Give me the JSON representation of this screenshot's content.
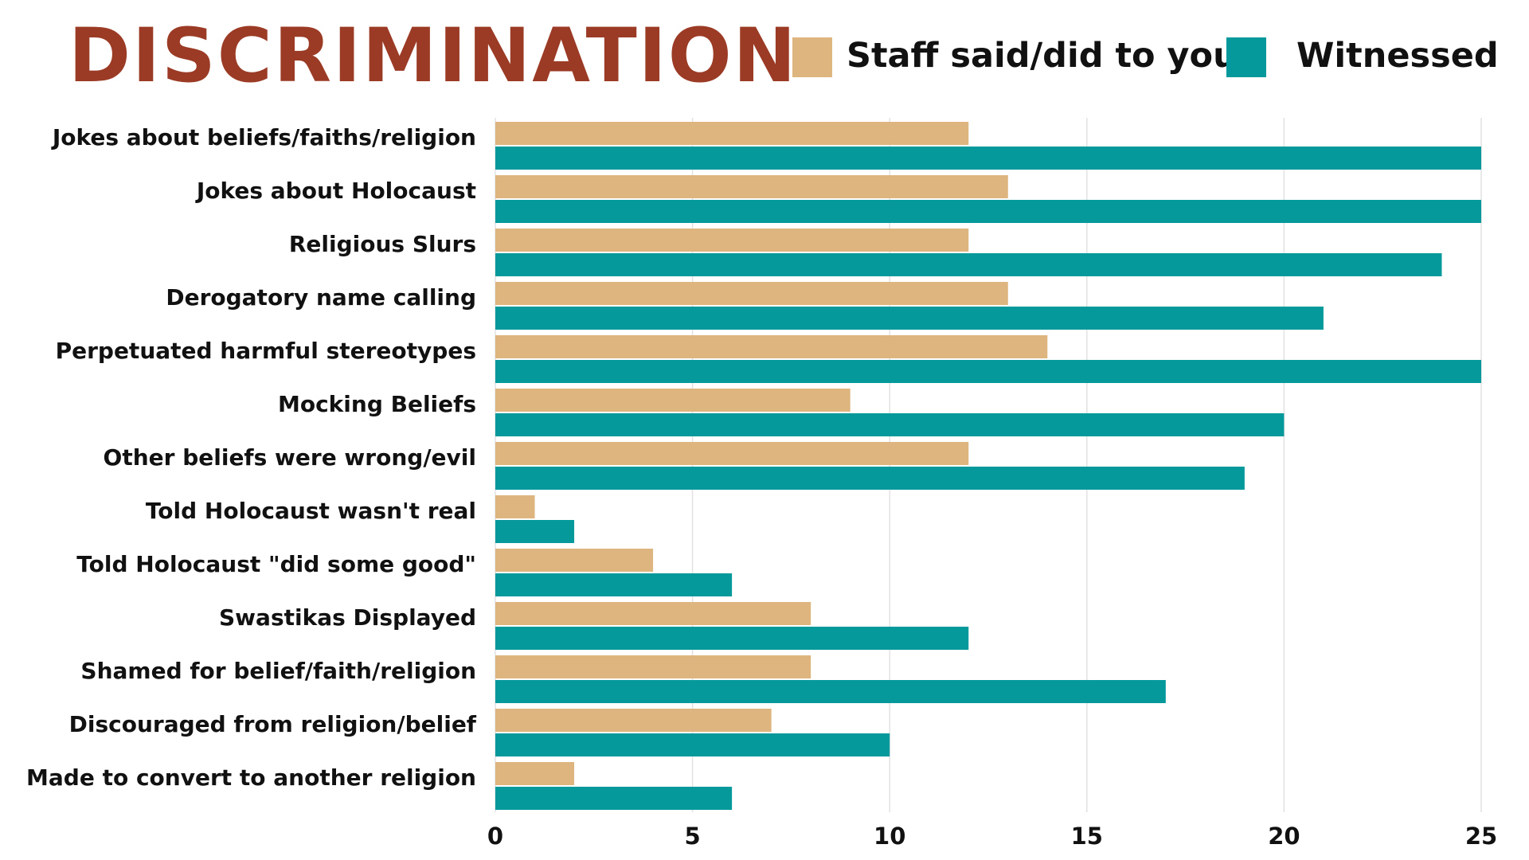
{
  "chart_data": {
    "type": "bar",
    "orientation": "horizontal",
    "title": "DISCRIMINATION",
    "categories": [
      "Jokes about beliefs/faiths/religion",
      "Jokes about Holocaust",
      "Religious Slurs",
      "Derogatory name calling",
      "Perpetuated harmful stereotypes",
      "Mocking Beliefs",
      "Other beliefs were wrong/evil",
      "Told Holocaust wasn't real",
      "Told Holocaust \"did some good\"",
      "Swastikas Displayed",
      "Shamed for belief/faith/religion",
      "Discouraged from religion/belief",
      "Made to convert to another religion"
    ],
    "series": [
      {
        "name": "Staff said/did to you",
        "color": "#deb47f",
        "values": [
          12,
          13,
          12,
          13,
          14,
          9,
          12,
          1,
          4,
          8,
          8,
          7,
          2
        ]
      },
      {
        "name": "Witnessed",
        "color": "#05999b",
        "values": [
          25,
          25,
          24,
          21,
          25,
          20,
          19,
          2,
          6,
          12,
          17,
          10,
          6
        ]
      }
    ],
    "xlim": [
      0,
      25
    ],
    "xticks": [
      0,
      5,
      10,
      15,
      20,
      25
    ],
    "grid": true,
    "legend_position": "top-right",
    "xlabel": "",
    "ylabel": ""
  }
}
